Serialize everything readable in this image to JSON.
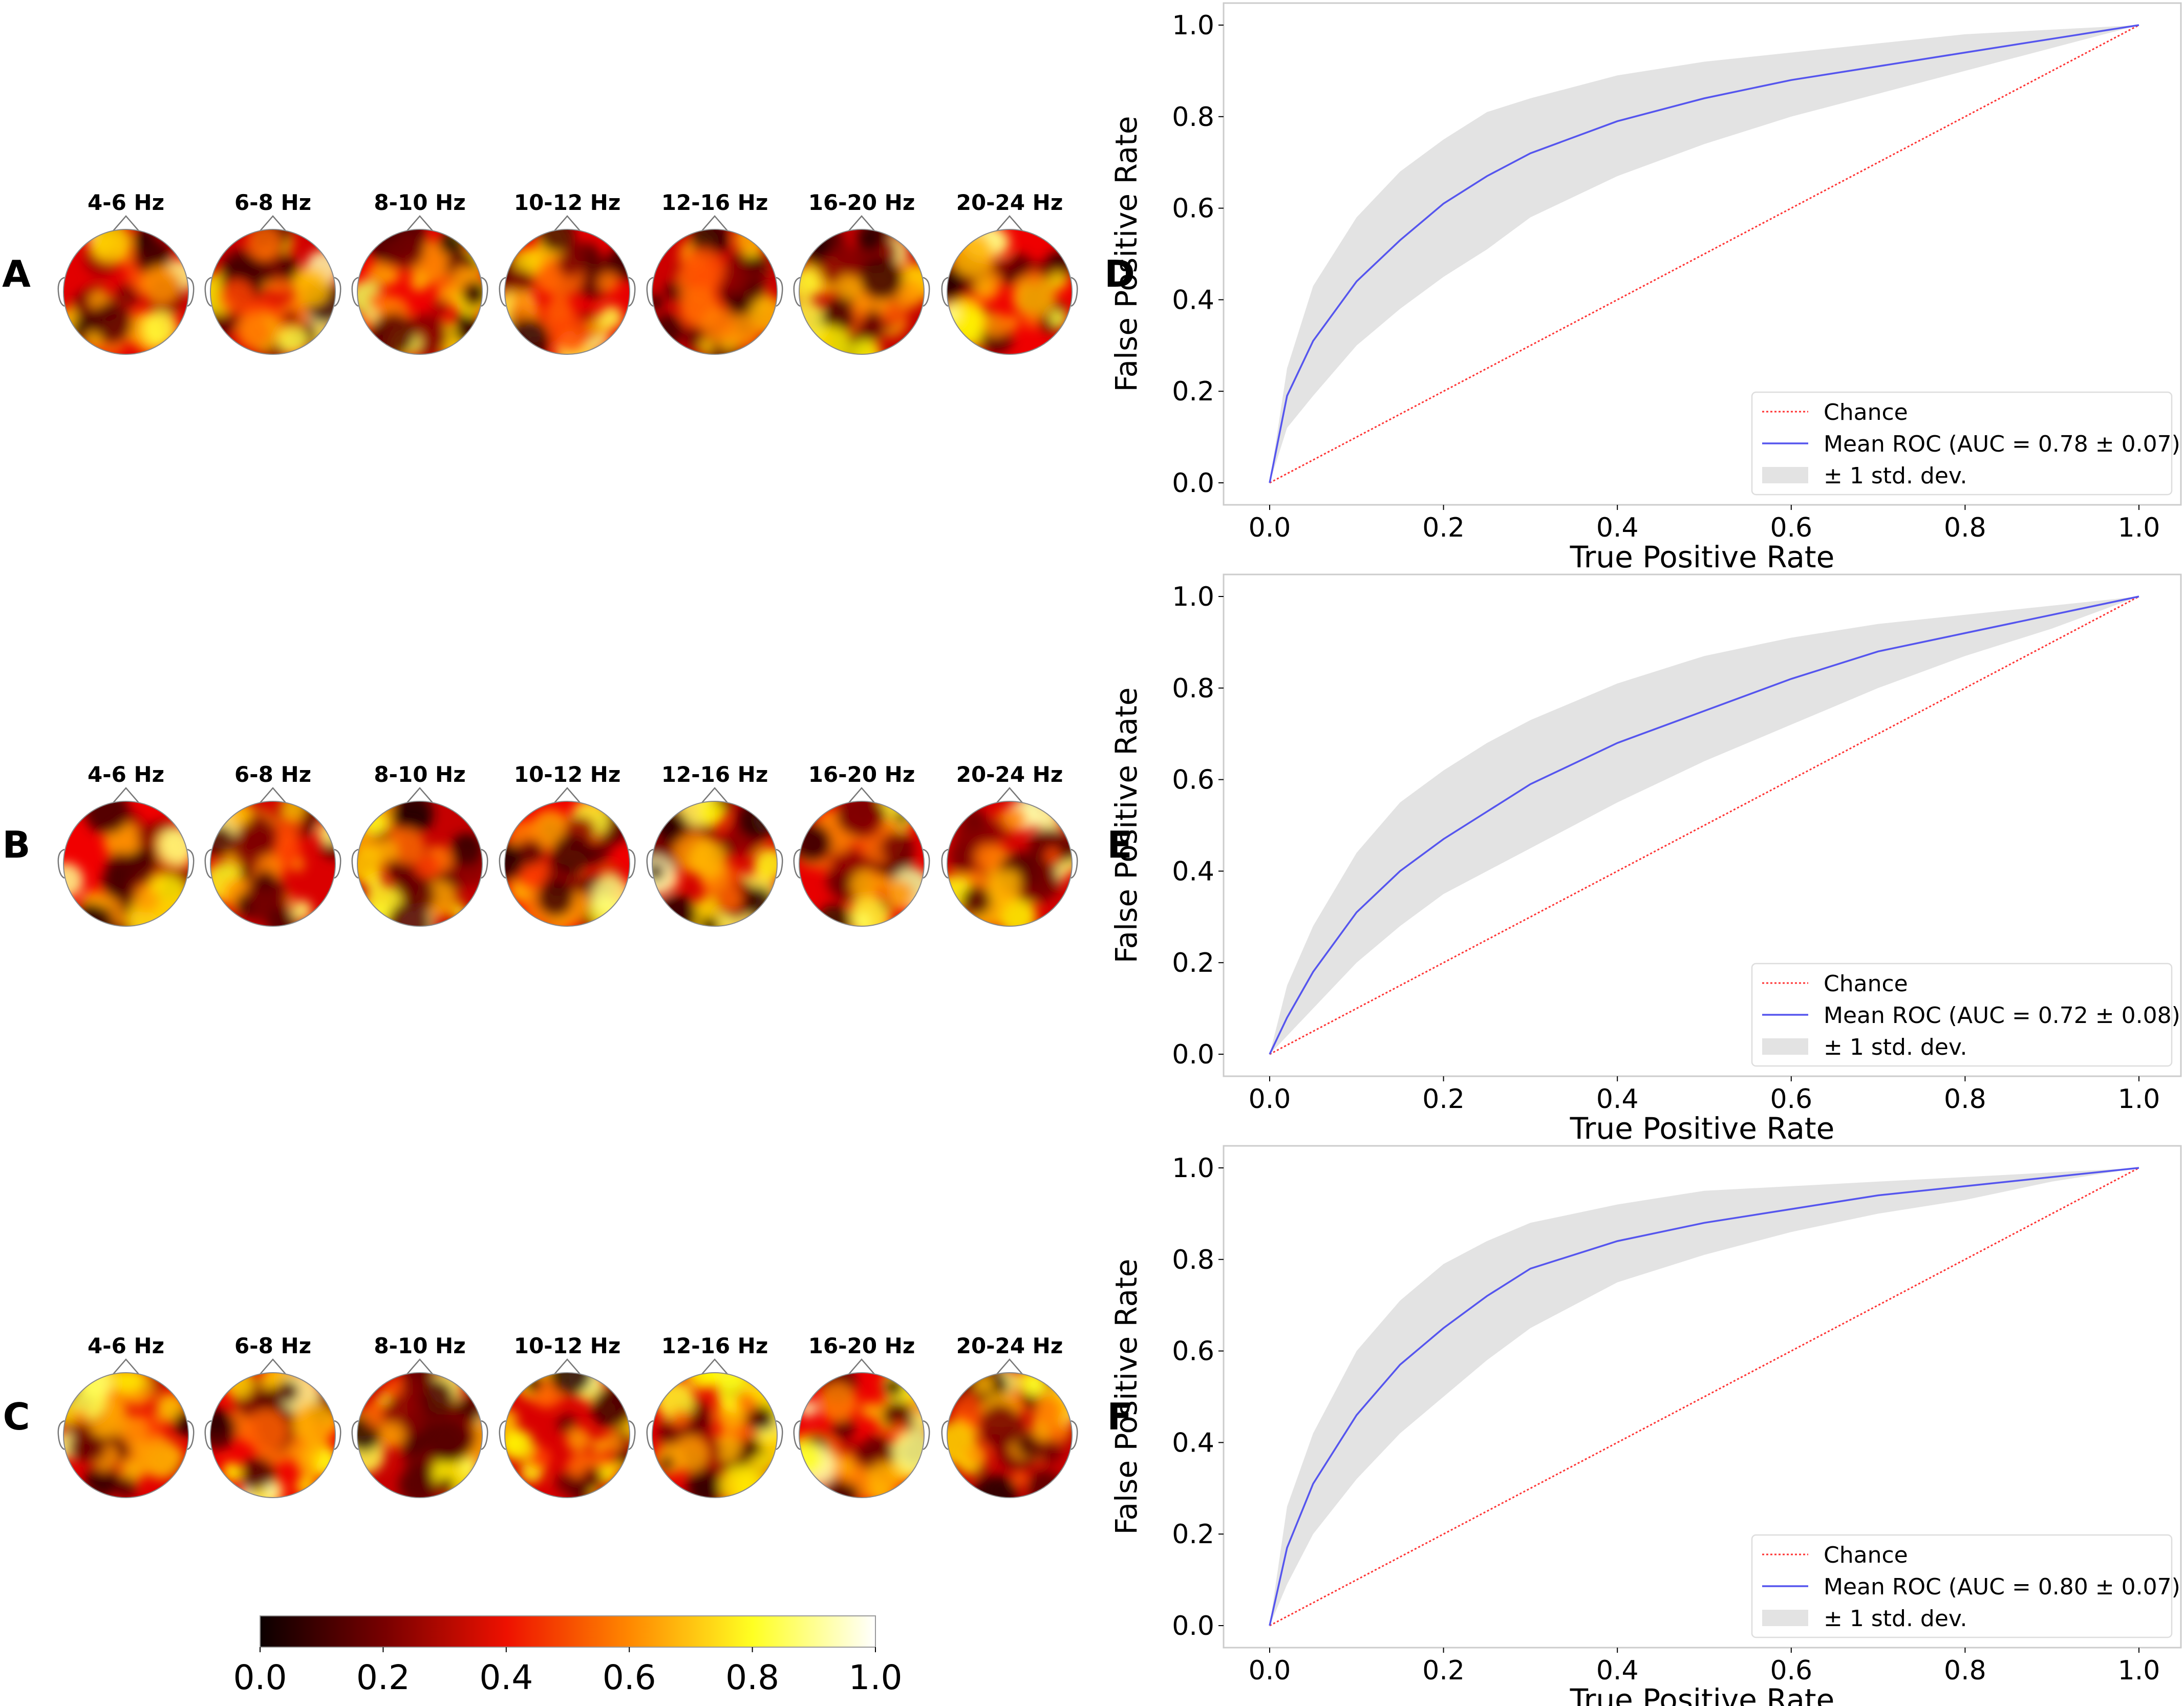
{
  "figure": {
    "panel_letters": [
      "A",
      "B",
      "C",
      "D",
      "E",
      "F"
    ],
    "topomap_labels": [
      "4-6 Hz",
      "6-8 Hz",
      "8-10 Hz",
      "10-12 Hz",
      "12-16 Hz",
      "16-20 Hz",
      "20-24 Hz"
    ],
    "colorbar": {
      "ticks": [
        "0.0",
        "0.2",
        "0.4",
        "0.6",
        "0.8",
        "1.0"
      ],
      "colormap": "hot"
    },
    "topomap_rows": [
      {
        "panel": "A"
      },
      {
        "panel": "B"
      },
      {
        "panel": "C"
      }
    ]
  },
  "chart_data": [
    {
      "panel": "D",
      "type": "line",
      "xlabel": "True Positive Rate",
      "ylabel": "False Positive Rate",
      "xlim": [
        0.0,
        1.0
      ],
      "ylim": [
        0.0,
        1.0
      ],
      "xticks": [
        "0.0",
        "0.2",
        "0.4",
        "0.6",
        "0.8",
        "1.0"
      ],
      "yticks": [
        "0.0",
        "0.2",
        "0.4",
        "0.6",
        "0.8",
        "1.0"
      ],
      "legend": {
        "placement": "lower-right",
        "entries": [
          "Chance",
          "Mean ROC (AUC = 0.78 ± 0.07)",
          "±  1 std. dev."
        ]
      },
      "colors": {
        "chance": "#ff3333",
        "mean": "#5555ee",
        "band": "#e3e3e3"
      },
      "x": [
        0,
        0.02,
        0.05,
        0.1,
        0.15,
        0.2,
        0.25,
        0.3,
        0.4,
        0.5,
        0.6,
        0.7,
        0.8,
        0.9,
        1.0
      ],
      "mean_roc": [
        0,
        0.19,
        0.31,
        0.44,
        0.53,
        0.61,
        0.67,
        0.72,
        0.79,
        0.84,
        0.88,
        0.91,
        0.94,
        0.97,
        1.0
      ],
      "upper": [
        0,
        0.25,
        0.43,
        0.58,
        0.68,
        0.75,
        0.81,
        0.84,
        0.89,
        0.92,
        0.94,
        0.96,
        0.98,
        0.99,
        1.0
      ],
      "lower": [
        0,
        0.12,
        0.19,
        0.3,
        0.38,
        0.45,
        0.51,
        0.58,
        0.67,
        0.74,
        0.8,
        0.85,
        0.9,
        0.95,
        1.0
      ]
    },
    {
      "panel": "E",
      "type": "line",
      "xlabel": "True Positive Rate",
      "ylabel": "False Positive Rate",
      "xlim": [
        0.0,
        1.0
      ],
      "ylim": [
        0.0,
        1.0
      ],
      "xticks": [
        "0.0",
        "0.2",
        "0.4",
        "0.6",
        "0.8",
        "1.0"
      ],
      "yticks": [
        "0.0",
        "0.2",
        "0.4",
        "0.6",
        "0.8",
        "1.0"
      ],
      "legend": {
        "placement": "lower-right",
        "entries": [
          "Chance",
          "Mean ROC (AUC = 0.72 ± 0.08)",
          "±  1 std. dev."
        ]
      },
      "colors": {
        "chance": "#ff3333",
        "mean": "#5555ee",
        "band": "#e3e3e3"
      },
      "x": [
        0,
        0.02,
        0.05,
        0.1,
        0.15,
        0.2,
        0.25,
        0.3,
        0.4,
        0.5,
        0.6,
        0.7,
        0.8,
        0.9,
        1.0
      ],
      "mean_roc": [
        0,
        0.08,
        0.18,
        0.31,
        0.4,
        0.47,
        0.53,
        0.59,
        0.68,
        0.75,
        0.82,
        0.88,
        0.92,
        0.96,
        1.0
      ],
      "upper": [
        0,
        0.15,
        0.28,
        0.44,
        0.55,
        0.62,
        0.68,
        0.73,
        0.81,
        0.87,
        0.91,
        0.94,
        0.96,
        0.98,
        1.0
      ],
      "lower": [
        0,
        0.04,
        0.1,
        0.2,
        0.28,
        0.35,
        0.4,
        0.45,
        0.55,
        0.64,
        0.72,
        0.8,
        0.87,
        0.93,
        1.0
      ]
    },
    {
      "panel": "F",
      "type": "line",
      "xlabel": "True Positive Rate",
      "ylabel": "False Positive Rate",
      "xlim": [
        0.0,
        1.0
      ],
      "ylim": [
        0.0,
        1.0
      ],
      "xticks": [
        "0.0",
        "0.2",
        "0.4",
        "0.6",
        "0.8",
        "1.0"
      ],
      "yticks": [
        "0.0",
        "0.2",
        "0.4",
        "0.6",
        "0.8",
        "1.0"
      ],
      "legend": {
        "placement": "lower-right",
        "entries": [
          "Chance",
          "Mean ROC (AUC = 0.80 ± 0.07)",
          "±  1 std. dev."
        ]
      },
      "colors": {
        "chance": "#ff3333",
        "mean": "#5555ee",
        "band": "#e3e3e3"
      },
      "x": [
        0,
        0.02,
        0.05,
        0.1,
        0.15,
        0.2,
        0.25,
        0.3,
        0.4,
        0.5,
        0.6,
        0.7,
        0.8,
        0.9,
        1.0
      ],
      "mean_roc": [
        0,
        0.17,
        0.31,
        0.46,
        0.57,
        0.65,
        0.72,
        0.78,
        0.84,
        0.88,
        0.91,
        0.94,
        0.96,
        0.98,
        1.0
      ],
      "upper": [
        0,
        0.26,
        0.42,
        0.6,
        0.71,
        0.79,
        0.84,
        0.88,
        0.92,
        0.95,
        0.96,
        0.97,
        0.98,
        0.99,
        1.0
      ],
      "lower": [
        0,
        0.09,
        0.2,
        0.32,
        0.42,
        0.5,
        0.58,
        0.65,
        0.75,
        0.81,
        0.86,
        0.9,
        0.93,
        0.97,
        1.0
      ]
    }
  ]
}
